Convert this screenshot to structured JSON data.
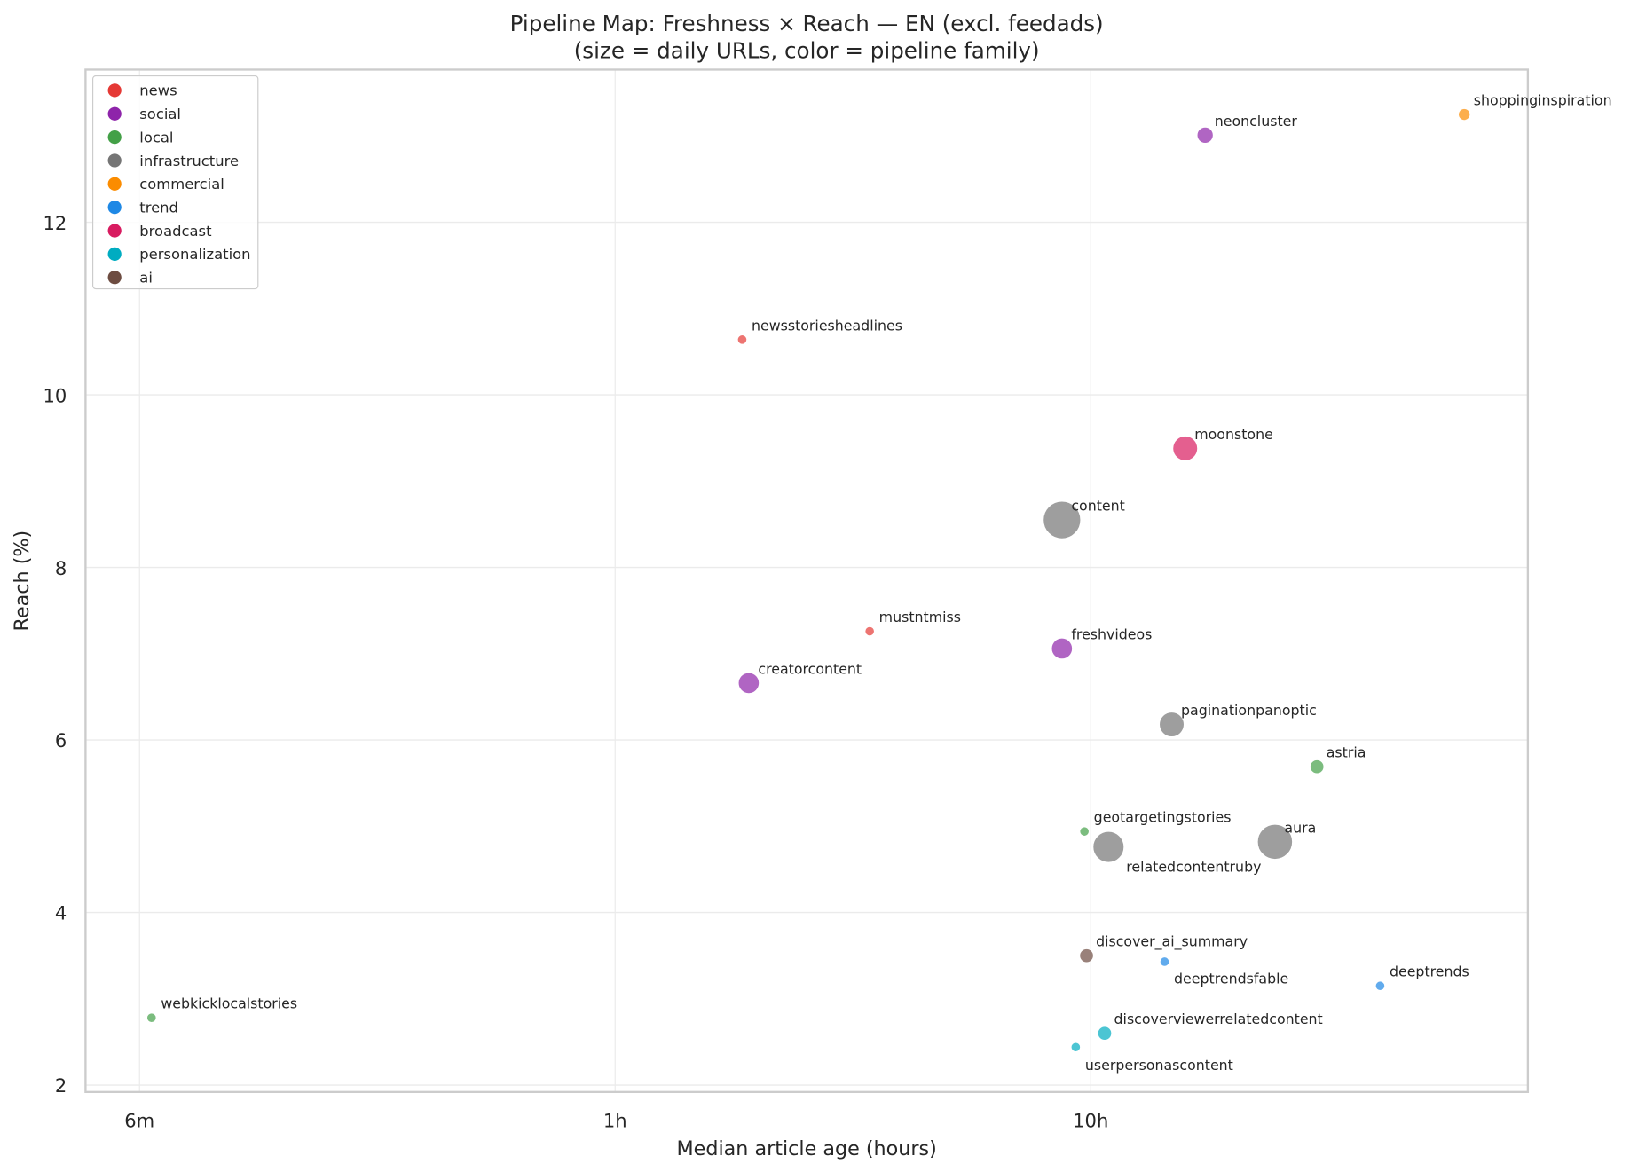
{
  "chart_data": {
    "type": "scatter",
    "title": "Pipeline Map: Freshness × Reach — EN (excl. feedads)",
    "subtitle": "(size = daily URLs, color = pipeline family)",
    "xlabel": "Median article age (hours)",
    "ylabel": "Reach (%)",
    "x_scale": "log",
    "xlim": [
      0.077,
      83
    ],
    "ylim": [
      1.92,
      13.77
    ],
    "x_ticks": [
      {
        "value": 0.1,
        "label": "6m"
      },
      {
        "value": 1,
        "label": "1h"
      },
      {
        "value": 10,
        "label": "10h"
      }
    ],
    "y_ticks": [
      2,
      4,
      6,
      8,
      10,
      12
    ],
    "grid": true,
    "legend_position": "top-left",
    "families": [
      {
        "name": "news",
        "color": "#e53935"
      },
      {
        "name": "social",
        "color": "#8e24aa"
      },
      {
        "name": "local",
        "color": "#43a047"
      },
      {
        "name": "infrastructure",
        "color": "#757575"
      },
      {
        "name": "commercial",
        "color": "#fb8c00"
      },
      {
        "name": "trend",
        "color": "#1e88e5"
      },
      {
        "name": "broadcast",
        "color": "#d81b60"
      },
      {
        "name": "personalization",
        "color": "#00acc1"
      },
      {
        "name": "ai",
        "color": "#6d4c41"
      }
    ],
    "points": [
      {
        "label": "newsstoriesheadlines",
        "family": "news",
        "x": 1.85,
        "y": 10.64,
        "size": 1
      },
      {
        "label": "mustntmiss",
        "family": "news",
        "x": 3.43,
        "y": 7.26,
        "size": 1
      },
      {
        "label": "creatorcontent",
        "family": "social",
        "x": 1.91,
        "y": 6.66,
        "size": 5
      },
      {
        "label": "freshvideos",
        "family": "social",
        "x": 8.7,
        "y": 7.06,
        "size": 5
      },
      {
        "label": "neoncluster",
        "family": "social",
        "x": 17.4,
        "y": 13.01,
        "size": 3
      },
      {
        "label": "content",
        "family": "infrastructure",
        "x": 8.7,
        "y": 8.55,
        "size": 16
      },
      {
        "label": "moonstone",
        "family": "broadcast",
        "x": 15.8,
        "y": 9.38,
        "size": 7
      },
      {
        "label": "shoppinginspiration",
        "family": "commercial",
        "x": 61,
        "y": 13.25,
        "size": 1.6
      },
      {
        "label": "paginationpanoptic",
        "family": "infrastructure",
        "x": 14.8,
        "y": 6.18,
        "size": 7
      },
      {
        "label": "astria",
        "family": "local",
        "x": 29.9,
        "y": 5.69,
        "size": 2.2
      },
      {
        "label": "geotargetingstories",
        "family": "local",
        "x": 9.7,
        "y": 4.94,
        "size": 1
      },
      {
        "label": "relatedcontentruby",
        "family": "infrastructure",
        "x": 10.9,
        "y": 4.76,
        "size": 11
      },
      {
        "label": "aura",
        "family": "infrastructure",
        "x": 24.4,
        "y": 4.82,
        "size": 14
      },
      {
        "label": "discover_ai_summary",
        "family": "ai",
        "x": 9.8,
        "y": 3.5,
        "size": 2.2
      },
      {
        "label": "deeptrendsfable",
        "family": "trend",
        "x": 14.3,
        "y": 3.43,
        "size": 1
      },
      {
        "label": "deeptrends",
        "family": "trend",
        "x": 40.6,
        "y": 3.15,
        "size": 1
      },
      {
        "label": "discoverviewerrelatedcontent",
        "family": "personalization",
        "x": 10.7,
        "y": 2.6,
        "size": 2.2
      },
      {
        "label": "userpersonascontent",
        "family": "personalization",
        "x": 9.3,
        "y": 2.44,
        "size": 1
      },
      {
        "label": "webkicklocalstories",
        "family": "local",
        "x": 0.106,
        "y": 2.78,
        "size": 1
      }
    ]
  }
}
